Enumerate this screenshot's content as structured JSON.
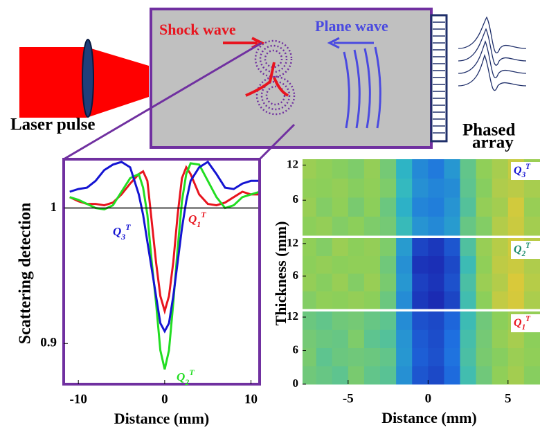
{
  "diagram": {
    "shock_wave": "Shock wave",
    "plane_wave": "Plane wave",
    "laser_pulse": "Laser pulse",
    "phased_array": [
      "Phased",
      "array"
    ]
  },
  "chart_data": [
    {
      "type": "line",
      "xlabel": "Distance (mm)",
      "ylabel": "Scattering detection",
      "x": [
        -11,
        -10,
        -9,
        -8,
        -7,
        -6,
        -5,
        -4,
        -3,
        -2.5,
        -2,
        -1.5,
        -1,
        -0.5,
        0,
        0.5,
        1,
        1.5,
        2,
        2.5,
        3,
        4,
        5,
        6,
        7,
        8,
        9,
        10,
        11
      ],
      "xlim": [
        -11.7,
        11
      ],
      "xticks": [
        -10,
        0,
        10
      ],
      "ylim": [
        0.87,
        1.036
      ],
      "yticks": [
        0.9,
        1
      ],
      "reference_line": 1,
      "series": [
        {
          "name": "Q1T",
          "color": "#e8141e",
          "values": [
            1.008,
            1.005,
            1.003,
            1.003,
            1.002,
            1.004,
            1.01,
            1.018,
            1.025,
            1.027,
            1.02,
            0.99,
            0.96,
            0.935,
            0.924,
            0.935,
            0.96,
            0.995,
            1.022,
            1.03,
            1.025,
            1.01,
            1.003,
            1.002,
            1.004,
            1.008,
            1.012,
            1.01,
            1.01
          ]
        },
        {
          "name": "Q2T",
          "color": "#22dd22",
          "values": [
            1.008,
            1.006,
            1.003,
            1.0,
            0.999,
            1.002,
            1.012,
            1.022,
            1.025,
            1.015,
            0.995,
            0.96,
            0.93,
            0.895,
            0.881,
            0.895,
            0.93,
            0.97,
            1.005,
            1.025,
            1.033,
            1.032,
            1.02,
            1.008,
            1.0,
            1.002,
            1.008,
            1.01,
            1.012
          ]
        },
        {
          "name": "Q3T",
          "color": "#1414d2",
          "values": [
            1.012,
            1.014,
            1.015,
            1.02,
            1.028,
            1.032,
            1.034,
            1.03,
            1.01,
            0.995,
            0.975,
            0.955,
            0.935,
            0.915,
            0.909,
            0.915,
            0.935,
            0.96,
            0.985,
            1.005,
            1.02,
            1.03,
            1.034,
            1.025,
            1.015,
            1.014,
            1.018,
            1.02,
            1.02
          ]
        }
      ]
    },
    {
      "type": "heatmap",
      "xlabel": "Distance (mm)",
      "ylabel": "Thickness (mm)",
      "x_bins": [
        -7.85,
        -7,
        -6,
        -5,
        -4,
        -3,
        -2,
        -1,
        0,
        1,
        2,
        3,
        4,
        5,
        6,
        7
      ],
      "xlim": [
        -7.85,
        7
      ],
      "xticks": [
        -5,
        0,
        5
      ],
      "zlim": [
        0,
        1
      ],
      "colormap": [
        "#1a1aa8",
        "#1e6fe0",
        "#2fb8c4",
        "#8ccf5a",
        "#d9c93a",
        "#f5e020"
      ],
      "panels": [
        {
          "label": "Q3T",
          "y_bins": [
            0,
            3.25,
            6.5,
            9.75,
            13
          ],
          "ylim": [
            0,
            13
          ],
          "yticks": [
            6,
            12
          ],
          "values": [
            [
              0.6,
              0.62,
              0.58,
              0.6,
              0.57,
              0.55,
              0.42,
              0.3,
              0.27,
              0.32,
              0.52,
              0.58,
              0.7,
              0.76,
              0.66
            ],
            [
              0.63,
              0.58,
              0.61,
              0.56,
              0.6,
              0.53,
              0.38,
              0.26,
              0.24,
              0.3,
              0.48,
              0.62,
              0.66,
              0.78,
              0.63
            ],
            [
              0.61,
              0.6,
              0.62,
              0.59,
              0.61,
              0.57,
              0.41,
              0.29,
              0.26,
              0.28,
              0.5,
              0.59,
              0.69,
              0.72,
              0.67
            ],
            [
              0.64,
              0.61,
              0.59,
              0.57,
              0.62,
              0.55,
              0.39,
              0.27,
              0.23,
              0.31,
              0.51,
              0.61,
              0.67,
              0.75,
              0.64
            ]
          ]
        },
        {
          "label": "Q2T",
          "y_bins": [
            0,
            3.25,
            6.5,
            9.75,
            13
          ],
          "ylim": [
            0,
            13
          ],
          "yticks": [
            6,
            12
          ],
          "values": [
            [
              0.58,
              0.61,
              0.6,
              0.62,
              0.6,
              0.53,
              0.28,
              0.07,
              0.04,
              0.1,
              0.44,
              0.6,
              0.74,
              0.79,
              0.68
            ],
            [
              0.62,
              0.59,
              0.63,
              0.58,
              0.63,
              0.56,
              0.31,
              0.09,
              0.06,
              0.13,
              0.46,
              0.64,
              0.7,
              0.8,
              0.71
            ],
            [
              0.6,
              0.62,
              0.6,
              0.61,
              0.61,
              0.54,
              0.29,
              0.06,
              0.05,
              0.11,
              0.43,
              0.61,
              0.73,
              0.76,
              0.69
            ],
            [
              0.61,
              0.58,
              0.64,
              0.6,
              0.62,
              0.57,
              0.32,
              0.1,
              0.07,
              0.14,
              0.47,
              0.63,
              0.71,
              0.78,
              0.72
            ]
          ]
        },
        {
          "label": "Q1T",
          "y_bins": [
            0,
            3.25,
            6.5,
            9.75,
            13
          ],
          "ylim": [
            0,
            13
          ],
          "yticks": [
            0,
            6,
            12
          ],
          "values": [
            [
              0.54,
              0.52,
              0.5,
              0.56,
              0.51,
              0.49,
              0.29,
              0.14,
              0.11,
              0.19,
              0.44,
              0.54,
              0.61,
              0.66,
              0.59
            ],
            [
              0.56,
              0.5,
              0.53,
              0.54,
              0.53,
              0.51,
              0.31,
              0.16,
              0.13,
              0.21,
              0.46,
              0.56,
              0.59,
              0.64,
              0.61
            ],
            [
              0.55,
              0.53,
              0.52,
              0.57,
              0.5,
              0.48,
              0.3,
              0.15,
              0.12,
              0.2,
              0.45,
              0.55,
              0.62,
              0.67,
              0.6
            ],
            [
              0.53,
              0.51,
              0.54,
              0.55,
              0.52,
              0.5,
              0.28,
              0.13,
              0.11,
              0.18,
              0.43,
              0.54,
              0.6,
              0.65,
              0.62
            ]
          ]
        }
      ]
    }
  ]
}
